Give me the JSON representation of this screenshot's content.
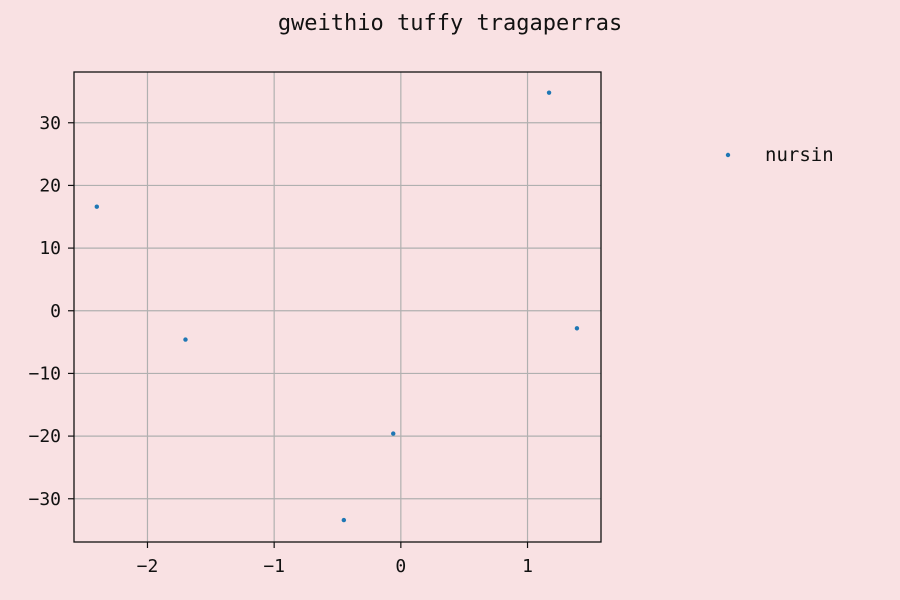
{
  "chart_data": {
    "type": "scatter",
    "title": "gweithio tuffy tragaperras",
    "xlabel": "",
    "ylabel": "",
    "xlim": [
      -2.58,
      1.58
    ],
    "ylim": [
      -36.9,
      38.1
    ],
    "x_ticks": [
      -2,
      -1,
      0,
      1
    ],
    "y_ticks": [
      -30,
      -20,
      -10,
      0,
      10,
      20,
      30
    ],
    "x_tick_labels": [
      "−2",
      "−1",
      "0",
      "1"
    ],
    "y_tick_labels": [
      "−30",
      "−20",
      "−10",
      "0",
      "10",
      "20",
      "30"
    ],
    "grid": true,
    "legend_position": "right",
    "series": [
      {
        "name": "nursin",
        "color": "#1f77b4",
        "points": [
          {
            "x": -2.4,
            "y": 16.6
          },
          {
            "x": -1.7,
            "y": -4.6
          },
          {
            "x": -0.45,
            "y": -33.4
          },
          {
            "x": -0.06,
            "y": -19.6
          },
          {
            "x": 1.17,
            "y": 34.8
          },
          {
            "x": 1.39,
            "y": -2.8
          }
        ]
      }
    ]
  }
}
